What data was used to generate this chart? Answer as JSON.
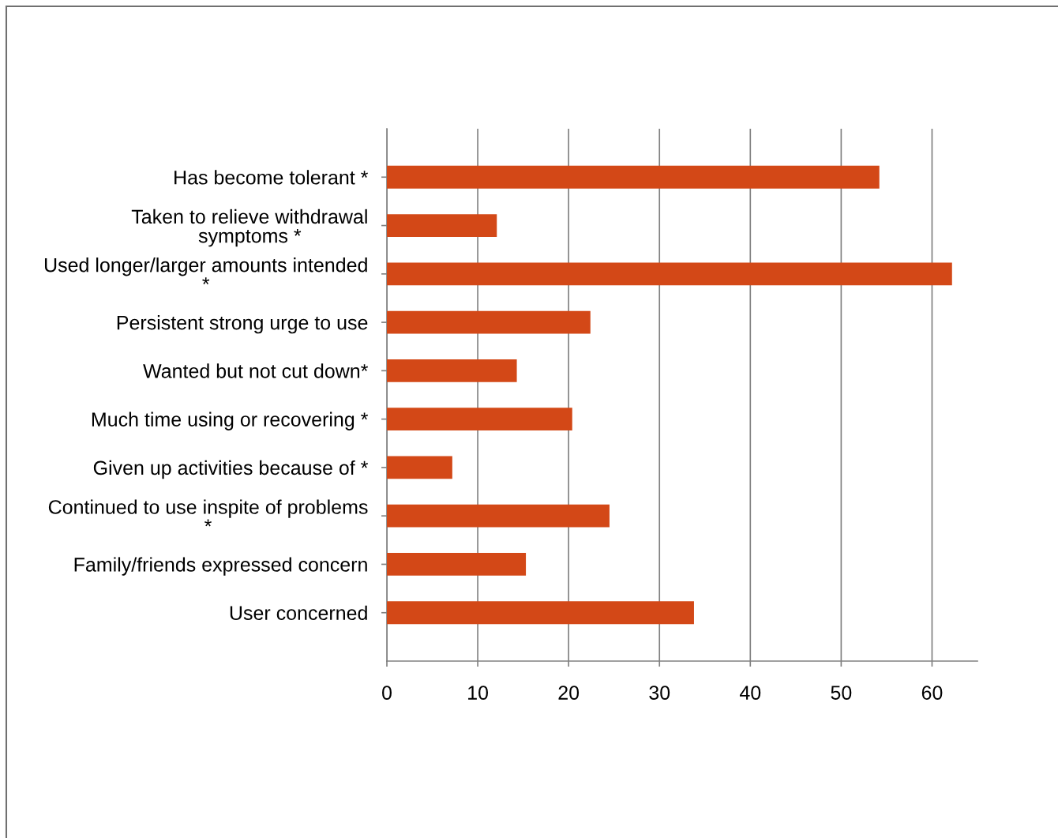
{
  "chart_data": {
    "type": "bar",
    "orientation": "horizontal",
    "categories": [
      "Has become tolerant *",
      "Taken to relieve withdrawal symptoms *",
      "Used longer/larger amounts intended *",
      "Persistent strong urge to use",
      "Wanted but not cut down*",
      "Much time using or recovering *",
      "Given up activities because of *",
      "Continued to use inspite of problems *",
      "Family/friends expressed concern",
      "User concerned"
    ],
    "values": [
      54.2,
      12.1,
      62.2,
      22.4,
      14.3,
      20.4,
      7.2,
      24.5,
      15.3,
      33.8
    ],
    "color": "#d34817",
    "xlim": [
      0,
      65
    ],
    "xticks": [
      0,
      10,
      20,
      30,
      40,
      50,
      60
    ],
    "grid": "x"
  }
}
